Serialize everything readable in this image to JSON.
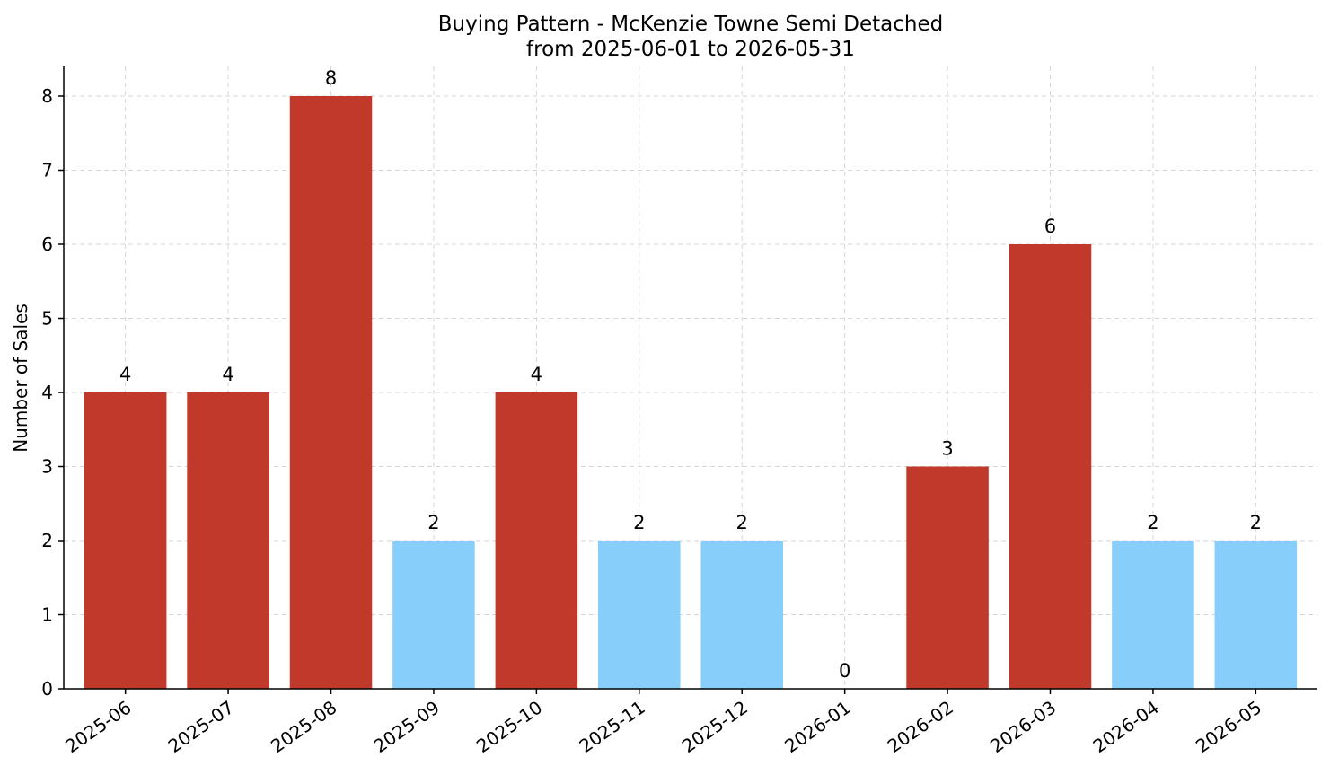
{
  "chart_data": {
    "type": "bar",
    "title": "Buying Pattern - McKenzie Towne Semi Detached",
    "subtitle": "from 2025-06-01 to 2026-05-31",
    "xlabel": "",
    "ylabel": "Number of Sales",
    "ylim": [
      0,
      8.4
    ],
    "yticks": [
      0,
      1,
      2,
      3,
      4,
      5,
      6,
      7,
      8
    ],
    "grid": true,
    "categories": [
      "2025-06",
      "2025-07",
      "2025-08",
      "2025-09",
      "2025-10",
      "2025-11",
      "2025-12",
      "2026-01",
      "2026-02",
      "2026-03",
      "2026-04",
      "2026-05"
    ],
    "values": [
      4,
      4,
      8,
      2,
      4,
      2,
      2,
      0,
      3,
      6,
      2,
      2
    ],
    "bar_colors": [
      "#c0392b",
      "#c0392b",
      "#c0392b",
      "#87cefa",
      "#c0392b",
      "#87cefa",
      "#87cefa",
      "#87cefa",
      "#c0392b",
      "#c0392b",
      "#87cefa",
      "#87cefa"
    ]
  }
}
